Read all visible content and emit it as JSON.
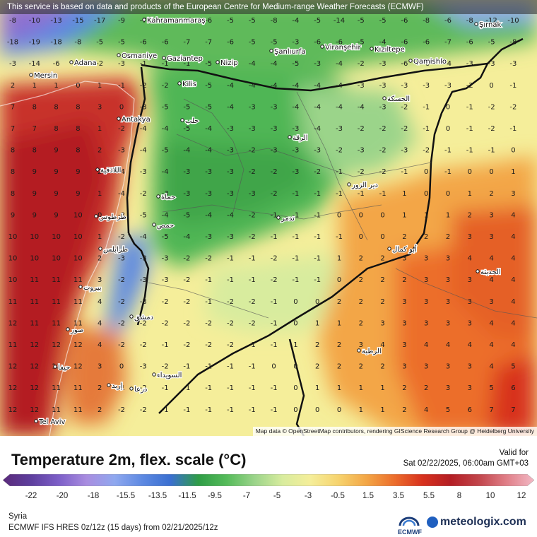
{
  "banner": "This service is based on data and products of the European Centre for Medium-range Weather Forecasts (ECMWF)",
  "attribution": "Map data © OpenStreetMap contributors, rendering GIScience Research Group @ Heidelberg University",
  "title": "Temperature 2m, flex. scale (°C)",
  "valid_label": "Valid for",
  "valid_time": "Sat 02/22/2025, 06:00am GMT+03",
  "region": "Syria",
  "model": "ECMWF IFS HRES 0z/12z (15 days) from  02/21/2025/12z",
  "ecmwf_logo_text": "ECMWF",
  "brand": "meteologix.com",
  "scale_ticks": [
    "-22",
    "-20",
    "-18",
    "-15.5",
    "-13.5",
    "-11.5",
    "-9.5",
    "-7",
    "-5",
    "-3",
    "-0.5",
    "1.5",
    "3.5",
    "5.5",
    "8",
    "10",
    "12"
  ],
  "scale_colors": [
    "#5a2a7a",
    "#5e3f9e",
    "#7d5fc8",
    "#a98de0",
    "#8fa8ef",
    "#5d89e2",
    "#3a6fd0",
    "#2f9d46",
    "#55bb5a",
    "#9bd48a",
    "#d8ec9e",
    "#f5ee9a",
    "#f6d36e",
    "#f3a646",
    "#ec6e2c",
    "#d8321e",
    "#b41e24",
    "#c1444a",
    "#e07e87",
    "#f2b9c5"
  ],
  "places": [
    {
      "name": "Kahramanmaraş"
    },
    {
      "name": "Şırnak"
    },
    {
      "name": "Adana"
    },
    {
      "name": "Osmaniye"
    },
    {
      "name": "Gaziantep"
    },
    {
      "name": "Nizip"
    },
    {
      "name": "Şanlıurfa"
    },
    {
      "name": "Viranşehir"
    },
    {
      "name": "Kızıltepe"
    },
    {
      "name": "Qamishlo"
    },
    {
      "name": "Mersin"
    },
    {
      "name": "Kilis"
    },
    {
      "name": "Antakya"
    },
    {
      "name": "Tel Aviv"
    },
    {
      "name": "حلب"
    },
    {
      "name": "الحسكة"
    },
    {
      "name": "الرقة"
    },
    {
      "name": "دير الزور"
    },
    {
      "name": "اللاذقية"
    },
    {
      "name": "حماة"
    },
    {
      "name": "حمص"
    },
    {
      "name": "طرطوس"
    },
    {
      "name": "طرابلس"
    },
    {
      "name": "بيروت"
    },
    {
      "name": "دمشق"
    },
    {
      "name": "درعا"
    },
    {
      "name": "السويداء"
    },
    {
      "name": "صور"
    },
    {
      "name": "حيفا"
    },
    {
      "name": "إربد"
    },
    {
      "name": "أبو كمال"
    },
    {
      "name": "الرطبة"
    },
    {
      "name": "الحديثة"
    },
    {
      "name": "تدمر"
    }
  ],
  "grid_values": [
    [
      "-8",
      "-10",
      "-13",
      "-15",
      "-17",
      "-9",
      "-7",
      "-13",
      "-11",
      "-6",
      "-5",
      "-5",
      "-8",
      "-4",
      "-5",
      "-14",
      "-5",
      "-5",
      "-6",
      "-8",
      "-6",
      "-8",
      "-12",
      "-10"
    ],
    [
      "-18",
      "-19",
      "-18",
      "-8",
      "-5",
      "-5",
      "-6",
      "-6",
      "-7",
      "-7",
      "-6",
      "-5",
      "-5",
      "-3",
      "-6",
      "-6",
      "-5",
      "-4",
      "-6",
      "-6",
      "-7",
      "-6",
      "-5",
      "-8"
    ],
    [
      "-3",
      "-14",
      "-6",
      "-4",
      "-2",
      "-3",
      "-1",
      "-1",
      "-1",
      "-5",
      "-5",
      "-4",
      "-4",
      "-5",
      "-3",
      "-4",
      "-2",
      "-3",
      "-6",
      "-6",
      "-4",
      "-3",
      "-3",
      "-3"
    ],
    [
      "2",
      "1",
      "1",
      "0",
      "1",
      "-1",
      "-2",
      "-2",
      "-4",
      "-5",
      "-4",
      "-4",
      "-4",
      "-4",
      "-4",
      "-4",
      "-3",
      "-3",
      "-3",
      "-3",
      "-3",
      "-2",
      "0",
      "-1"
    ],
    [
      "7",
      "8",
      "8",
      "8",
      "3",
      "0",
      "-3",
      "-5",
      "-5",
      "-5",
      "-4",
      "-3",
      "-3",
      "-4",
      "-4",
      "-4",
      "-4",
      "-3",
      "-2",
      "-1",
      "0",
      "-1",
      "-2",
      "-2"
    ],
    [
      "7",
      "7",
      "8",
      "8",
      "1",
      "-2",
      "-4",
      "-4",
      "-5",
      "-4",
      "-3",
      "-3",
      "-3",
      "-3",
      "-4",
      "-3",
      "-2",
      "-2",
      "-2",
      "-1",
      "0",
      "-1",
      "-2",
      "-1"
    ],
    [
      "8",
      "8",
      "9",
      "8",
      "2",
      "-3",
      "-4",
      "-5",
      "-4",
      "-4",
      "-3",
      "-2",
      "-3",
      "-3",
      "-3",
      "-2",
      "-3",
      "-2",
      "-3",
      "-2",
      "-1",
      "-1",
      "-1",
      "0"
    ],
    [
      "8",
      "9",
      "9",
      "9",
      "2",
      "-4",
      "-3",
      "-4",
      "-3",
      "-3",
      "-3",
      "-2",
      "-2",
      "-3",
      "-2",
      "-1",
      "-2",
      "-2",
      "-1",
      "0",
      "-1",
      "0",
      "0",
      "1"
    ],
    [
      "8",
      "9",
      "9",
      "9",
      "1",
      "-4",
      "-2",
      "-3",
      "-3",
      "-3",
      "-3",
      "-3",
      "-2",
      "-1",
      "-1",
      "-1",
      "-1",
      "-1",
      "1",
      "0",
      "0",
      "1",
      "2",
      "3"
    ],
    [
      "9",
      "9",
      "9",
      "10",
      "0",
      "-3",
      "-5",
      "-4",
      "-5",
      "-4",
      "-4",
      "-2",
      "-1",
      "-1",
      "-1",
      "0",
      "0",
      "0",
      "1",
      "1",
      "1",
      "2",
      "3",
      "4"
    ],
    [
      "10",
      "10",
      "10",
      "10",
      "1",
      "-2",
      "-4",
      "-5",
      "-4",
      "-3",
      "-3",
      "-2",
      "-1",
      "-1",
      "-1",
      "-1",
      "0",
      "0",
      "2",
      "2",
      "2",
      "3",
      "3",
      "4"
    ],
    [
      "10",
      "10",
      "10",
      "10",
      "2",
      "-3",
      "-3",
      "-3",
      "-2",
      "-2",
      "-1",
      "-1",
      "-2",
      "-1",
      "-1",
      "1",
      "2",
      "2",
      "3",
      "3",
      "3",
      "4",
      "4",
      "4"
    ],
    [
      "10",
      "11",
      "11",
      "11",
      "3",
      "-2",
      "-3",
      "-3",
      "-2",
      "-1",
      "-1",
      "-1",
      "-2",
      "-1",
      "-1",
      "0",
      "2",
      "2",
      "2",
      "3",
      "3",
      "3",
      "4",
      "4"
    ],
    [
      "11",
      "11",
      "11",
      "11",
      "4",
      "-2",
      "-3",
      "-2",
      "-2",
      "-1",
      "-2",
      "-2",
      "-1",
      "0",
      "0",
      "2",
      "2",
      "2",
      "3",
      "3",
      "3",
      "3",
      "3",
      "4"
    ],
    [
      "12",
      "11",
      "11",
      "11",
      "4",
      "-2",
      "-2",
      "-2",
      "-2",
      "-2",
      "-2",
      "-2",
      "-1",
      "0",
      "1",
      "1",
      "2",
      "3",
      "3",
      "3",
      "3",
      "3",
      "4",
      "4"
    ],
    [
      "11",
      "12",
      "12",
      "12",
      "4",
      "-2",
      "-2",
      "-1",
      "-2",
      "-2",
      "-2",
      "-1",
      "-1",
      "1",
      "2",
      "2",
      "3",
      "4",
      "3",
      "4",
      "4",
      "4",
      "4",
      "4"
    ],
    [
      "12",
      "12",
      "12",
      "12",
      "3",
      "0",
      "-3",
      "-2",
      "-1",
      "-1",
      "-1",
      "-1",
      "0",
      "0",
      "2",
      "2",
      "2",
      "2",
      "3",
      "3",
      "3",
      "3",
      "4",
      "5"
    ],
    [
      "12",
      "12",
      "11",
      "11",
      "2",
      "-1",
      "-2",
      "-1",
      "-1",
      "-1",
      "-1",
      "-1",
      "-1",
      "0",
      "1",
      "1",
      "1",
      "1",
      "2",
      "2",
      "3",
      "3",
      "5",
      "6"
    ],
    [
      "12",
      "12",
      "11",
      "11",
      "2",
      "-2",
      "-2",
      "-1",
      "-1",
      "-1",
      "-1",
      "-1",
      "-1",
      "0",
      "0",
      "0",
      "1",
      "1",
      "2",
      "4",
      "5",
      "6",
      "7",
      "7"
    ]
  ]
}
